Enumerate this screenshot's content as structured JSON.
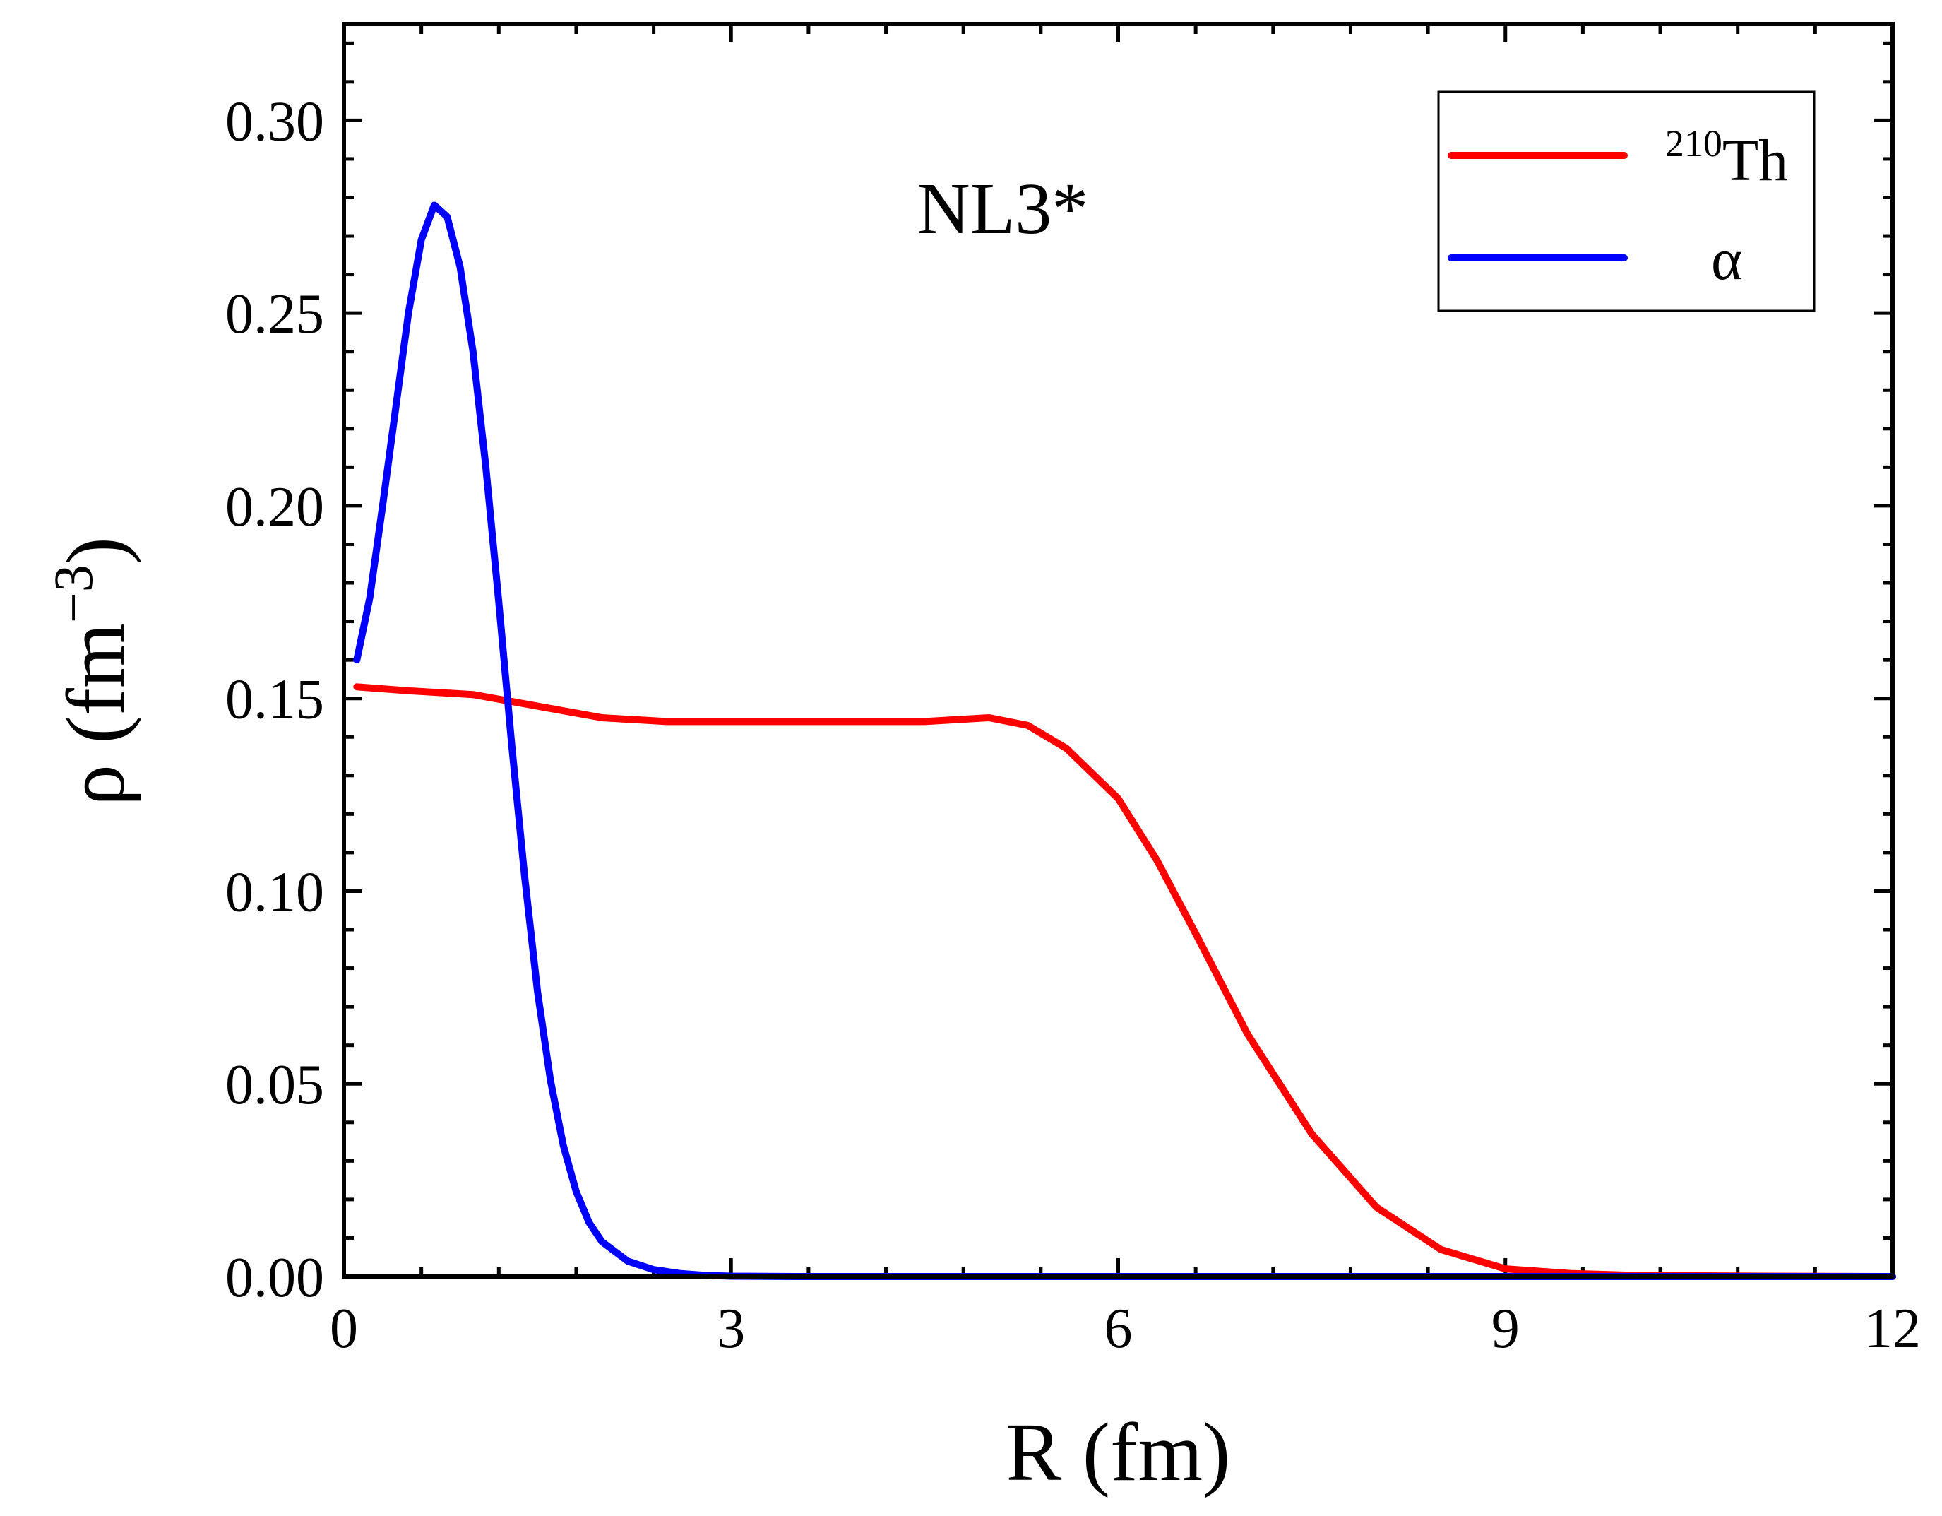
{
  "chart_data": {
    "type": "line",
    "annotation": "NL3*",
    "xlabel": "R (fm)",
    "ylabel": {
      "base": "ρ (fm",
      "sup": "−3",
      "close": ")"
    },
    "xlim": [
      0,
      12
    ],
    "ylim": [
      0,
      0.325
    ],
    "x_ticks": [
      0,
      3,
      6,
      9,
      12
    ],
    "x_tick_labels": [
      "0",
      "3",
      "6",
      "9",
      "12"
    ],
    "x_minor_step": 0.6,
    "y_ticks": [
      0.0,
      0.05,
      0.1,
      0.15,
      0.2,
      0.25,
      0.3
    ],
    "y_tick_labels": [
      "0.00",
      "0.05",
      "0.10",
      "0.15",
      "0.20",
      "0.25",
      "0.30"
    ],
    "y_minor_step": 0.01,
    "legend_position": "top-right",
    "series": [
      {
        "name": "Th-210",
        "legend": {
          "sup": "210",
          "text": "Th"
        },
        "color": "#ff0000",
        "x": [
          0.1,
          0.5,
          1.0,
          1.5,
          2.0,
          2.5,
          3.0,
          3.5,
          4.0,
          4.5,
          5.0,
          5.3,
          5.6,
          6.0,
          6.3,
          6.6,
          7.0,
          7.5,
          8.0,
          8.5,
          9.0,
          9.5,
          10.0,
          11.0,
          12.0
        ],
        "y": [
          0.153,
          0.152,
          0.151,
          0.148,
          0.145,
          0.144,
          0.144,
          0.144,
          0.144,
          0.144,
          0.145,
          0.143,
          0.137,
          0.124,
          0.108,
          0.089,
          0.063,
          0.037,
          0.018,
          0.007,
          0.002,
          0.0008,
          0.0003,
          0.0001,
          0.0
        ]
      },
      {
        "name": "alpha",
        "legend": {
          "sup": "",
          "text": "α"
        },
        "color": "#0000ff",
        "x": [
          0.1,
          0.2,
          0.3,
          0.4,
          0.5,
          0.6,
          0.7,
          0.8,
          0.9,
          1.0,
          1.1,
          1.2,
          1.3,
          1.4,
          1.5,
          1.6,
          1.7,
          1.8,
          1.9,
          2.0,
          2.2,
          2.4,
          2.6,
          2.8,
          3.0,
          3.5,
          4.0,
          5.0,
          6.0,
          8.0,
          10.0,
          12.0
        ],
        "y": [
          0.16,
          0.176,
          0.2,
          0.225,
          0.25,
          0.269,
          0.278,
          0.275,
          0.262,
          0.24,
          0.21,
          0.175,
          0.138,
          0.104,
          0.074,
          0.051,
          0.034,
          0.022,
          0.014,
          0.009,
          0.004,
          0.0018,
          0.0008,
          0.0003,
          0.0001,
          0.0,
          0.0,
          0.0,
          0.0,
          0.0,
          0.0,
          0.0
        ]
      }
    ]
  }
}
